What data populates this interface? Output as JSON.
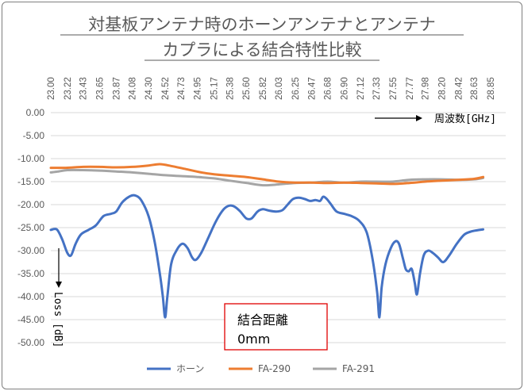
{
  "chart_data": {
    "type": "line",
    "title_lines": [
      "対基板アンテナ時のホーンアンテナとアンテナ",
      "カプラによる結合特性比較"
    ],
    "xlabel": "周波数[GHz]",
    "ylabel": "Loss [dB]",
    "x_ticks": [
      "23.00",
      "23.22",
      "23.43",
      "23.65",
      "23.87",
      "24.08",
      "24.30",
      "24.52",
      "24.73",
      "24.95",
      "25.17",
      "25.38",
      "25.60",
      "25.82",
      "26.03",
      "26.25",
      "26.47",
      "26.68",
      "26.90",
      "27.12",
      "27.33",
      "27.55",
      "27.77",
      "27.98",
      "28.20",
      "28.42",
      "28.63",
      "28.85"
    ],
    "y_ticks": [
      "0.00",
      "-5.00",
      "-10.00",
      "-15.00",
      "-20.00",
      "-25.00",
      "-30.00",
      "-35.00",
      "-40.00",
      "-45.00",
      "-50.00"
    ],
    "ylim": [
      -50,
      0
    ],
    "xlim": [
      23.0,
      29.05
    ],
    "grid": true,
    "legend_position": "bottom",
    "annotation": {
      "line1": "結合距離",
      "line2": "0mm"
    },
    "series": [
      {
        "name": "ホーン",
        "color": "#4472c4",
        "points": [
          [
            23.0,
            -25.5
          ],
          [
            23.08,
            -25.4
          ],
          [
            23.15,
            -27.5
          ],
          [
            23.22,
            -30.5
          ],
          [
            23.27,
            -31.0
          ],
          [
            23.33,
            -28.5
          ],
          [
            23.4,
            -26.5
          ],
          [
            23.5,
            -25.5
          ],
          [
            23.6,
            -24.5
          ],
          [
            23.7,
            -22.5
          ],
          [
            23.8,
            -22.0
          ],
          [
            23.87,
            -21.5
          ],
          [
            23.95,
            -19.5
          ],
          [
            24.05,
            -18.2
          ],
          [
            24.12,
            -18.0
          ],
          [
            24.2,
            -19.0
          ],
          [
            24.3,
            -22.5
          ],
          [
            24.38,
            -28.0
          ],
          [
            24.45,
            -35.0
          ],
          [
            24.49,
            -40.0
          ],
          [
            24.52,
            -44.5
          ],
          [
            24.55,
            -40.0
          ],
          [
            24.6,
            -33.0
          ],
          [
            24.67,
            -30.0
          ],
          [
            24.75,
            -28.5
          ],
          [
            24.82,
            -29.5
          ],
          [
            24.88,
            -31.5
          ],
          [
            24.93,
            -32.0
          ],
          [
            25.0,
            -30.5
          ],
          [
            25.1,
            -27.0
          ],
          [
            25.2,
            -23.5
          ],
          [
            25.3,
            -21.0
          ],
          [
            25.38,
            -20.2
          ],
          [
            25.45,
            -20.5
          ],
          [
            25.52,
            -21.5
          ],
          [
            25.6,
            -23.0
          ],
          [
            25.67,
            -23.0
          ],
          [
            25.75,
            -21.5
          ],
          [
            25.82,
            -21.0
          ],
          [
            25.9,
            -21.3
          ],
          [
            26.0,
            -21.5
          ],
          [
            26.08,
            -21.2
          ],
          [
            26.15,
            -20.0
          ],
          [
            26.22,
            -18.8
          ],
          [
            26.3,
            -18.5
          ],
          [
            26.38,
            -18.8
          ],
          [
            26.45,
            -19.2
          ],
          [
            26.52,
            -19.0
          ],
          [
            26.58,
            -19.2
          ],
          [
            26.62,
            -18.3
          ],
          [
            26.66,
            -18.6
          ],
          [
            26.72,
            -19.8
          ],
          [
            26.8,
            -21.5
          ],
          [
            26.9,
            -22.0
          ],
          [
            27.0,
            -22.5
          ],
          [
            27.1,
            -23.5
          ],
          [
            27.2,
            -26.0
          ],
          [
            27.28,
            -32.0
          ],
          [
            27.34,
            -39.0
          ],
          [
            27.37,
            -44.5
          ],
          [
            27.4,
            -38.0
          ],
          [
            27.45,
            -33.0
          ],
          [
            27.52,
            -29.5
          ],
          [
            27.58,
            -28.0
          ],
          [
            27.63,
            -28.5
          ],
          [
            27.68,
            -31.5
          ],
          [
            27.72,
            -34.0
          ],
          [
            27.76,
            -34.5
          ],
          [
            27.8,
            -34.0
          ],
          [
            27.84,
            -37.0
          ],
          [
            27.87,
            -39.5
          ],
          [
            27.91,
            -35.0
          ],
          [
            27.96,
            -31.0
          ],
          [
            28.02,
            -30.0
          ],
          [
            28.08,
            -30.5
          ],
          [
            28.15,
            -31.5
          ],
          [
            28.22,
            -32.5
          ],
          [
            28.3,
            -31.0
          ],
          [
            28.4,
            -28.5
          ],
          [
            28.5,
            -26.5
          ],
          [
            28.6,
            -25.8
          ],
          [
            28.7,
            -25.5
          ],
          [
            28.75,
            -25.4
          ]
        ]
      },
      {
        "name": "FA-290",
        "color": "#ed7d31",
        "points": [
          [
            23.0,
            -12.0
          ],
          [
            23.2,
            -12.0
          ],
          [
            23.43,
            -11.8
          ],
          [
            23.65,
            -11.8
          ],
          [
            23.87,
            -11.9
          ],
          [
            24.08,
            -11.8
          ],
          [
            24.3,
            -11.5
          ],
          [
            24.45,
            -11.2
          ],
          [
            24.6,
            -11.6
          ],
          [
            24.8,
            -12.3
          ],
          [
            25.0,
            -13.0
          ],
          [
            25.17,
            -13.4
          ],
          [
            25.38,
            -13.7
          ],
          [
            25.6,
            -14.0
          ],
          [
            25.82,
            -14.5
          ],
          [
            26.03,
            -15.0
          ],
          [
            26.25,
            -15.2
          ],
          [
            26.47,
            -15.2
          ],
          [
            26.68,
            -15.3
          ],
          [
            26.9,
            -15.2
          ],
          [
            27.12,
            -15.3
          ],
          [
            27.33,
            -15.4
          ],
          [
            27.55,
            -15.5
          ],
          [
            27.77,
            -15.3
          ],
          [
            27.98,
            -15.0
          ],
          [
            28.2,
            -14.8
          ],
          [
            28.42,
            -14.6
          ],
          [
            28.63,
            -14.4
          ],
          [
            28.75,
            -14.0
          ]
        ]
      },
      {
        "name": "FA-291",
        "color": "#a5a5a5",
        "points": [
          [
            23.0,
            -13.0
          ],
          [
            23.1,
            -12.8
          ],
          [
            23.22,
            -12.5
          ],
          [
            23.43,
            -12.5
          ],
          [
            23.65,
            -12.6
          ],
          [
            23.87,
            -12.8
          ],
          [
            24.08,
            -13.0
          ],
          [
            24.3,
            -13.3
          ],
          [
            24.52,
            -13.6
          ],
          [
            24.73,
            -13.8
          ],
          [
            24.95,
            -14.0
          ],
          [
            25.17,
            -14.3
          ],
          [
            25.38,
            -14.8
          ],
          [
            25.6,
            -15.3
          ],
          [
            25.82,
            -15.8
          ],
          [
            26.03,
            -15.6
          ],
          [
            26.25,
            -15.3
          ],
          [
            26.47,
            -15.2
          ],
          [
            26.68,
            -15.0
          ],
          [
            26.9,
            -15.2
          ],
          [
            27.12,
            -15.0
          ],
          [
            27.33,
            -15.0
          ],
          [
            27.55,
            -15.0
          ],
          [
            27.77,
            -14.6
          ],
          [
            27.98,
            -14.5
          ],
          [
            28.2,
            -14.5
          ],
          [
            28.42,
            -14.6
          ],
          [
            28.63,
            -14.5
          ],
          [
            28.75,
            -14.2
          ]
        ]
      }
    ]
  }
}
